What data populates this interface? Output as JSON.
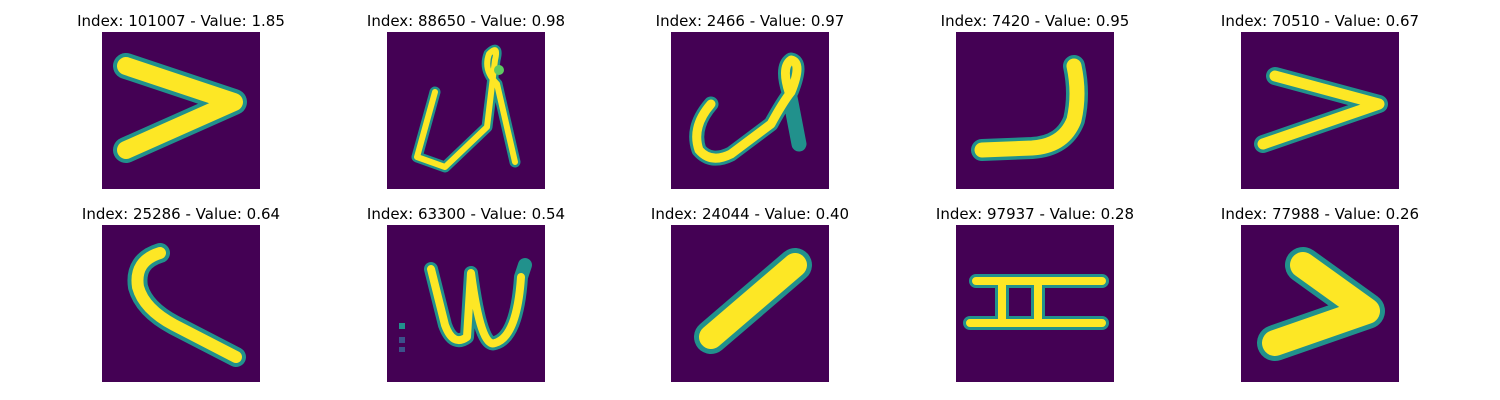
{
  "colors": {
    "background": "#440154",
    "stroke_edge": "#21918c",
    "stroke_mid": "#5ec962",
    "stroke_core": "#fde725"
  },
  "panels": [
    {
      "title": "Index: 101007 - Value: 1.85",
      "shape": "chevron-right"
    },
    {
      "title": "Index: 88650 - Value: 0.98",
      "shape": "loop-glyph"
    },
    {
      "title": "Index: 2466 - Value: 0.97",
      "shape": "loop-glyph-2"
    },
    {
      "title": "Index: 7420 - Value: 0.95",
      "shape": "j-hook"
    },
    {
      "title": "Index: 70510 - Value: 0.67",
      "shape": "chevron-right-small"
    },
    {
      "title": "Index: 25286 - Value: 0.64",
      "shape": "l-curve"
    },
    {
      "title": "Index: 63300 - Value: 0.54",
      "shape": "w-glyph"
    },
    {
      "title": "Index: 24044 - Value: 0.40",
      "shape": "diagonal-bar"
    },
    {
      "title": "Index: 97937 - Value: 0.28",
      "shape": "h-glyph"
    },
    {
      "title": "Index: 77988 - Value: 0.26",
      "shape": "chevron-right-bold"
    }
  ]
}
